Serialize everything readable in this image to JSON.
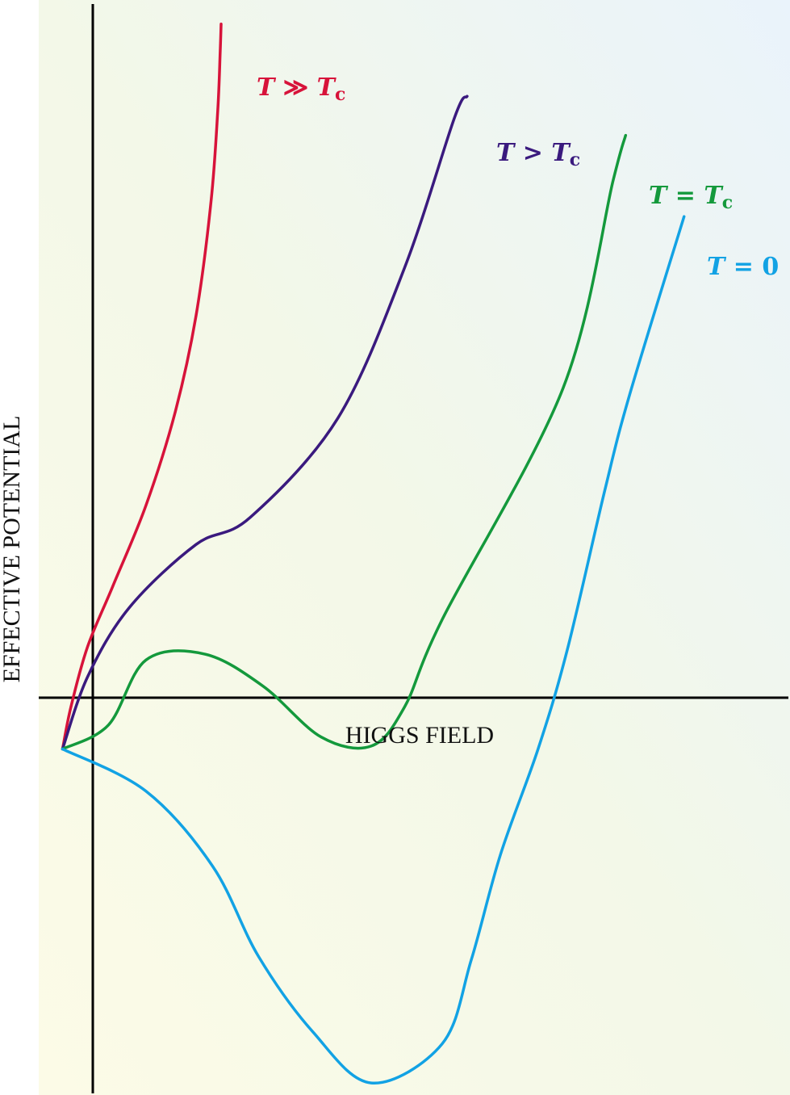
{
  "chart_data": {
    "type": "line",
    "title": "",
    "xlabel": "HIGGS FIELD",
    "ylabel": "EFFECTIVE POTENTIAL",
    "grid": false,
    "legend": "inline labels at curve ends",
    "colors": {
      "t_much_greater": "#d7133a",
      "t_greater": "#3a1a7e",
      "t_equal": "#14993c",
      "t_zero": "#12a2e4"
    },
    "series": [
      {
        "name": "T ≫ Tc",
        "label": {
          "sym1": "T",
          "op": " ≫ ",
          "sym2": "T",
          "sub": "c"
        },
        "color": "#d7133a",
        "x": [
          0,
          10,
          30,
          60,
          100,
          135,
          160,
          178,
          186,
          189,
          190
        ],
        "y": [
          0,
          70,
          170,
          270,
          405,
          560,
          720,
          910,
          1060,
          1160,
          1205
        ]
      },
      {
        "name": "T > Tc",
        "label": {
          "sym1": "T",
          "op": " > ",
          "sym2": "T",
          "sub": "c"
        },
        "color": "#3a1a7e",
        "x": [
          0,
          30,
          80,
          160,
          225,
          330,
          410,
          470,
          485
        ],
        "y": [
          0,
          120,
          235,
          340,
          385,
          550,
          800,
          1050,
          1085
        ]
      },
      {
        "name": "T = Tc",
        "label": {
          "sym1": "T",
          "op": " = ",
          "sym2": "T",
          "sub": "c"
        },
        "color": "#14993c",
        "x": [
          0,
          55,
          100,
          170,
          240,
          310,
          370,
          410,
          455,
          600,
          660,
          675
        ],
        "y": [
          0,
          40,
          148,
          158,
          105,
          20,
          5,
          70,
          215,
          600,
          945,
          1020
        ]
      },
      {
        "name": "T = 0",
        "label": {
          "sym1": "T",
          "op": " = ",
          "sym2": "0",
          "sub": ""
        },
        "color": "#12a2e4",
        "x": [
          0,
          100,
          180,
          235,
          300,
          370,
          455,
          490,
          525,
          570,
          605,
          650,
          680,
          745
        ],
        "y": [
          0,
          -70,
          -195,
          -345,
          -470,
          -555,
          -490,
          -350,
          -175,
          0,
          165,
          430,
          590,
          885
        ]
      }
    ],
    "xlim": [
      -75,
      872
    ],
    "ylim": [
      -575,
      1245
    ]
  }
}
